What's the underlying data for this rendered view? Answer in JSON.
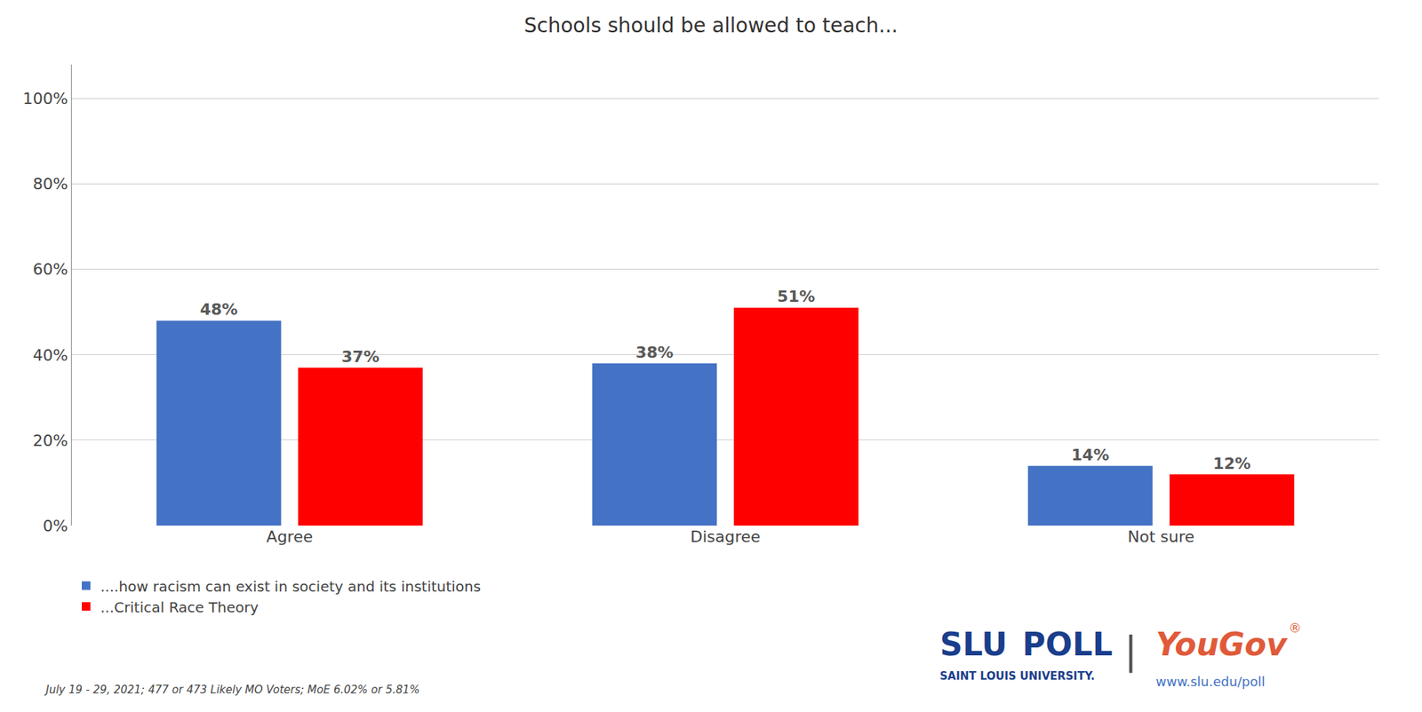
{
  "chart_data": {
    "type": "bar",
    "title": "Schools should be allowed to teach...",
    "categories": [
      "Agree",
      "Disagree",
      "Not sure"
    ],
    "series": [
      {
        "name": "....how racism can exist in society and its institutions",
        "color": "#4472C4",
        "values": [
          48,
          38,
          14
        ],
        "value_labels": [
          "48%",
          "38%",
          "14%"
        ]
      },
      {
        "name": "...Critical Race Theory",
        "color": "#FF0000",
        "values": [
          37,
          51,
          12
        ],
        "value_labels": [
          "37%",
          "51%",
          "12%"
        ]
      }
    ],
    "ylim": [
      0,
      108
    ],
    "yticks": [
      {
        "value": 0,
        "label": "0%"
      },
      {
        "value": 20,
        "label": "20%"
      },
      {
        "value": 40,
        "label": "40%"
      },
      {
        "value": 60,
        "label": "60%"
      },
      {
        "value": 80,
        "label": "80%"
      },
      {
        "value": 100,
        "label": "100%"
      }
    ],
    "grid": true,
    "legend": "bottom",
    "data_labels": true,
    "annotations": [
      {
        "text": "July 19 - 29, 2021; 477 or 473 Likely MO Voters; MoE 6.02% or 5.81%"
      },
      {
        "text": "SLU",
        "color": "#1B3E8C"
      },
      {
        "text": "POLL",
        "color": "#1B3E8C"
      },
      {
        "text": "SAINT LOUIS UNIVERSITY.",
        "color": "#1B3E8C"
      },
      {
        "text": "|"
      },
      {
        "text": "YouGov",
        "color": "#E05A3A"
      },
      {
        "text": "®",
        "color": "#E05A3A"
      },
      {
        "text": "www.slu.edu/poll",
        "color": "#4472C4"
      }
    ]
  }
}
